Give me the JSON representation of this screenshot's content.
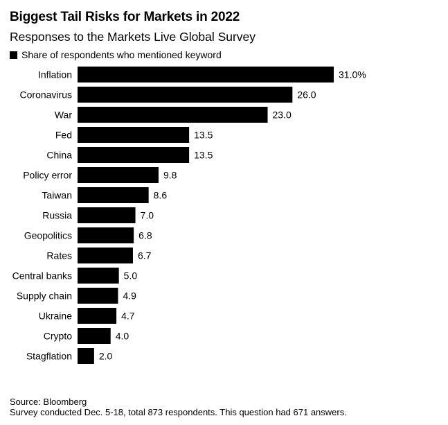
{
  "chart_data": {
    "type": "bar",
    "orientation": "horizontal",
    "title": "Biggest Tail Risks for Markets in 2022",
    "subtitle": "Responses to the Markets Live Global Survey",
    "legend": {
      "label": "Share of respondents who mentioned keyword",
      "placement": "top-left",
      "color": "#000000"
    },
    "categories": [
      "Inflation",
      "Coronavirus",
      "War",
      "Fed",
      "China",
      "Policy error",
      "Taiwan",
      "Russia",
      "Geopolitics",
      "Rates",
      "Central banks",
      "Supply chain",
      "Ukraine",
      "Crypto",
      "Stagflation"
    ],
    "values": [
      31.0,
      26.0,
      23.0,
      13.5,
      13.5,
      9.8,
      8.6,
      7.0,
      6.8,
      6.7,
      5.0,
      4.9,
      4.7,
      4.0,
      2.0
    ],
    "value_labels": [
      "31.0%",
      "26.0",
      "23.0",
      "13.5",
      "13.5",
      "9.8",
      "8.6",
      "7.0",
      "6.8",
      "6.7",
      "5.0",
      "4.9",
      "4.7",
      "4.0",
      "2.0"
    ],
    "xlim": [
      0,
      31.0
    ],
    "grid": false,
    "bar_color": "#000000"
  },
  "source": {
    "line1": "Source: Bloomberg",
    "line2": "Survey conducted Dec. 5-18, total 873 respondents. This question had 671 answers."
  }
}
